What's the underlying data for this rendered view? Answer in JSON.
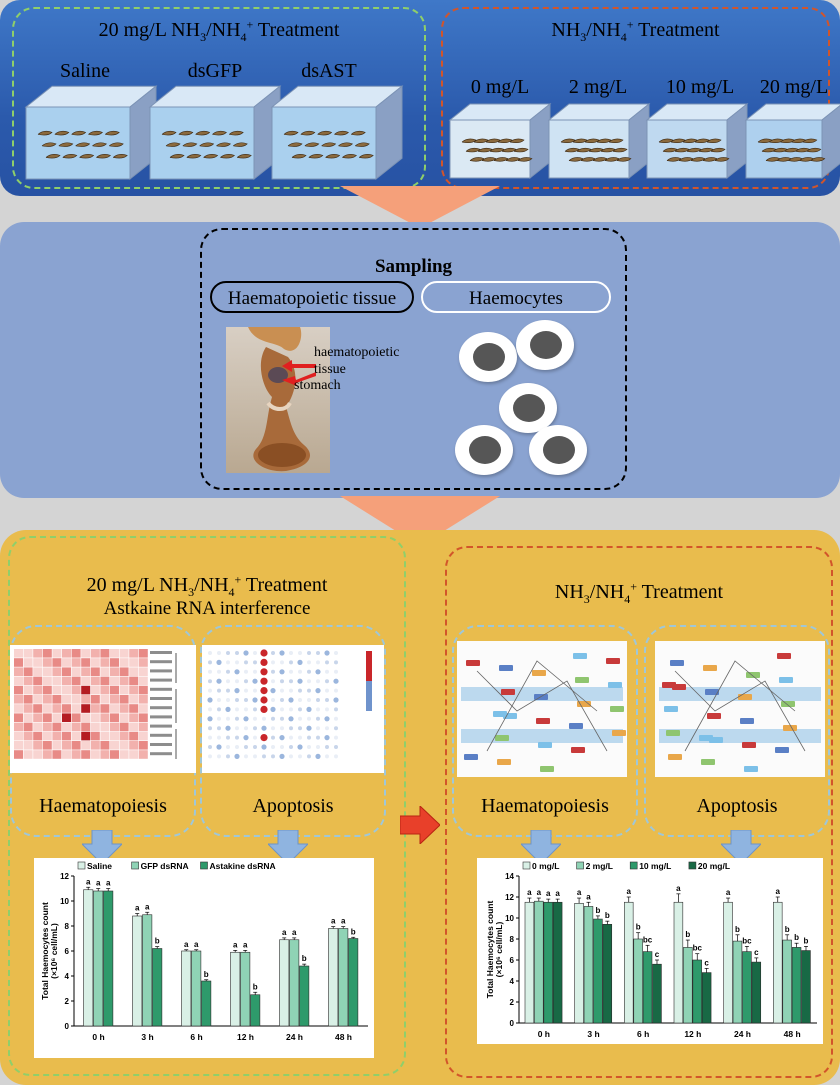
{
  "top": {
    "left_title": "20 mg/L NH3/NH4+ Treatment",
    "right_title": "NH3/NH4+ Treatment",
    "left_tanks": [
      "Saline",
      "dsGFP",
      "dsAST"
    ],
    "right_tanks": [
      "0 mg/L",
      "2 mg/L",
      "10 mg/L",
      "20 mg/L"
    ]
  },
  "sampling": {
    "title": "Sampling",
    "tab_tissue": "Haematopoietic tissue",
    "tab_cells": "Haemocytes",
    "photo_label_1": "haematopoietic",
    "photo_label_2": "tissue",
    "photo_label_3": "stomach"
  },
  "bottom": {
    "left_title": "20 mg/L NH3/NH4+ Treatment",
    "left_subtitle": "Astkaine RNA interference",
    "right_title": "NH3/NH4+ Treatment",
    "hema_label": "Haematopoiesis",
    "apop_label": "Apoptosis"
  },
  "colors": {
    "top_panel": "#2b5aac",
    "mid_panel": "#8aa3d1",
    "bottom_panel": "#e9bc4d",
    "green_dash": "#8fcf6a",
    "orange_dash": "#d2552a"
  },
  "chart_data": [
    {
      "type": "bar",
      "categories": [
        "0 h",
        "3 h",
        "6 h",
        "12 h",
        "24 h",
        "48 h"
      ],
      "ylabel": "Total Haemocytes count (×10⁶ cell/mL)",
      "ylim": [
        0,
        12
      ],
      "yticks": [
        0,
        2,
        4,
        6,
        8,
        10,
        12
      ],
      "series": [
        {
          "name": "Saline",
          "color": "#d9f0e6",
          "values": [
            10.9,
            8.8,
            6.0,
            5.9,
            6.9,
            7.8
          ],
          "errors": [
            0.2,
            0.2,
            0.1,
            0.15,
            0.15,
            0.15
          ],
          "letters": [
            "a",
            "a",
            "a",
            "a",
            "a",
            "a"
          ]
        },
        {
          "name": "GFP dsRNA",
          "color": "#8fd3b5",
          "values": [
            10.8,
            8.9,
            6.0,
            5.9,
            6.9,
            7.8
          ],
          "errors": [
            0.2,
            0.2,
            0.1,
            0.15,
            0.15,
            0.15
          ],
          "letters": [
            "a",
            "a",
            "a",
            "a",
            "a",
            "a"
          ]
        },
        {
          "name": "Astakine dsRNA",
          "color": "#2e9a6b",
          "values": [
            10.8,
            6.2,
            3.6,
            2.5,
            4.8,
            7.0
          ],
          "errors": [
            0.2,
            0.15,
            0.1,
            0.2,
            0.15,
            0.1
          ],
          "letters": [
            "a",
            "b",
            "b",
            "b",
            "b",
            "b"
          ]
        }
      ]
    },
    {
      "type": "bar",
      "categories": [
        "0 h",
        "3 h",
        "6 h",
        "12 h",
        "24 h",
        "48 h"
      ],
      "ylabel": "Total Haemocytes count (×10⁶ cell/mL)",
      "ylim": [
        0,
        14
      ],
      "yticks": [
        0,
        2,
        4,
        6,
        8,
        10,
        12,
        14
      ],
      "series": [
        {
          "name": "0 mg/L",
          "color": "#d9f0e6",
          "values": [
            11.5,
            11.4,
            11.5,
            11.5,
            11.5,
            11.5
          ],
          "errors": [
            0.4,
            0.5,
            0.5,
            0.8,
            0.4,
            0.5
          ],
          "letters": [
            "a",
            "a",
            "a",
            "a",
            "a",
            "a"
          ]
        },
        {
          "name": "2 mg/L",
          "color": "#8fd3b5",
          "values": [
            11.6,
            11.1,
            8.0,
            7.2,
            7.8,
            7.9
          ],
          "errors": [
            0.3,
            0.4,
            0.6,
            0.7,
            0.6,
            0.5
          ],
          "letters": [
            "a",
            "a",
            "b",
            "b",
            "b",
            "b"
          ]
        },
        {
          "name": "10 mg/L",
          "color": "#2e9a6b",
          "values": [
            11.5,
            9.9,
            6.8,
            6.0,
            6.8,
            7.2
          ],
          "errors": [
            0.3,
            0.3,
            0.6,
            0.6,
            0.5,
            0.4
          ],
          "letters": [
            "a",
            "b",
            "bc",
            "bc",
            "bc",
            "b"
          ]
        },
        {
          "name": "20 mg/L",
          "color": "#186945",
          "values": [
            11.5,
            9.4,
            5.6,
            4.8,
            5.8,
            6.9
          ],
          "errors": [
            0.3,
            0.3,
            0.4,
            0.4,
            0.4,
            0.4
          ],
          "letters": [
            "a",
            "b",
            "c",
            "c",
            "c",
            "b"
          ]
        }
      ]
    }
  ]
}
